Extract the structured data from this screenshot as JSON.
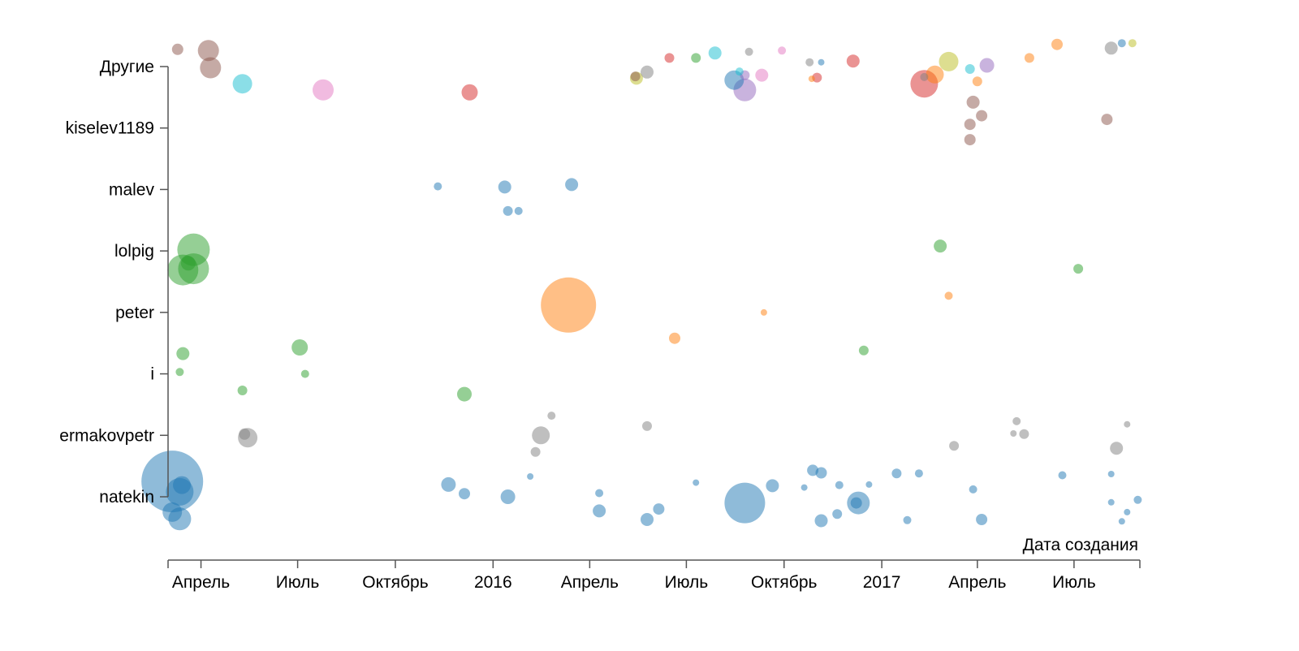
{
  "chart_data": {
    "type": "scatter",
    "xlabel": "Дата создания",
    "ylabel": "",
    "xlim": [
      "2015-03-01",
      "2017-09-01"
    ],
    "x_ticks": [
      {
        "date": "2015-04-01",
        "label": "Апрель"
      },
      {
        "date": "2015-07-01",
        "label": "Июль"
      },
      {
        "date": "2015-10-01",
        "label": "Октябрь"
      },
      {
        "date": "2016-01-01",
        "label": "2016"
      },
      {
        "date": "2016-04-01",
        "label": "Апрель"
      },
      {
        "date": "2016-07-01",
        "label": "Июль"
      },
      {
        "date": "2016-10-01",
        "label": "Октябрь"
      },
      {
        "date": "2017-01-01",
        "label": "2017"
      },
      {
        "date": "2017-04-01",
        "label": "Апрель"
      },
      {
        "date": "2017-07-01",
        "label": "Июль"
      }
    ],
    "categories": [
      "natekin",
      "ermakovpetr",
      "i",
      "peter",
      "lolpig",
      "malev",
      "kiselev1189",
      "Другие"
    ],
    "palette": {
      "blue": "#1f77b4",
      "orange": "#ff7f0e",
      "green": "#2ca02c",
      "red": "#d62728",
      "purple": "#9467bd",
      "brown": "#8c564b",
      "pink": "#e377c2",
      "gray": "#7f7f7f",
      "olive": "#bcbd22",
      "cyan": "#17becf"
    },
    "grid": false,
    "legend": "none",
    "points": [
      {
        "date": "2015-03-10",
        "category": "Другие",
        "jitter": 0.28,
        "size": 7,
        "color": "brown"
      },
      {
        "date": "2015-04-10",
        "category": "Другие",
        "jitter": -0.02,
        "size": 13,
        "color": "brown"
      },
      {
        "date": "2015-04-08",
        "category": "Другие",
        "jitter": 0.26,
        "size": 13,
        "color": "brown"
      },
      {
        "date": "2015-05-10",
        "category": "Другие",
        "jitter": -0.28,
        "size": 12,
        "color": "cyan"
      },
      {
        "date": "2015-07-25",
        "category": "Другие",
        "jitter": -0.38,
        "size": 13,
        "color": "pink"
      },
      {
        "date": "2015-12-10",
        "category": "Другие",
        "jitter": -0.42,
        "size": 10,
        "color": "red"
      },
      {
        "date": "2016-05-15",
        "category": "Другие",
        "jitter": -0.19,
        "size": 8,
        "color": "olive"
      },
      {
        "date": "2016-05-14",
        "category": "Другие",
        "jitter": -0.16,
        "size": 6,
        "color": "brown"
      },
      {
        "date": "2016-05-25",
        "category": "Другие",
        "jitter": -0.09,
        "size": 8,
        "color": "gray"
      },
      {
        "date": "2016-06-15",
        "category": "Другие",
        "jitter": 0.14,
        "size": 6,
        "color": "red"
      },
      {
        "date": "2016-07-10",
        "category": "Другие",
        "jitter": 0.14,
        "size": 6,
        "color": "green"
      },
      {
        "date": "2016-07-28",
        "category": "Другие",
        "jitter": 0.22,
        "size": 8,
        "color": "cyan"
      },
      {
        "date": "2016-08-15",
        "category": "Другие",
        "jitter": -0.22,
        "size": 12,
        "color": "blue"
      },
      {
        "date": "2016-08-20",
        "category": "Другие",
        "jitter": -0.08,
        "size": 5,
        "color": "cyan"
      },
      {
        "date": "2016-08-25",
        "category": "Другие",
        "jitter": -0.38,
        "size": 14,
        "color": "purple"
      },
      {
        "date": "2016-08-25",
        "category": "Другие",
        "jitter": -0.14,
        "size": 6,
        "color": "purple"
      },
      {
        "date": "2016-08-29",
        "category": "Другие",
        "jitter": 0.24,
        "size": 5,
        "color": "gray"
      },
      {
        "date": "2016-09-10",
        "category": "Другие",
        "jitter": -0.14,
        "size": 8,
        "color": "pink"
      },
      {
        "date": "2016-09-29",
        "category": "Другие",
        "jitter": 0.26,
        "size": 5,
        "color": "pink"
      },
      {
        "date": "2016-10-25",
        "category": "Другие",
        "jitter": 0.07,
        "size": 5,
        "color": "gray"
      },
      {
        "date": "2016-10-27",
        "category": "Другие",
        "jitter": -0.2,
        "size": 4,
        "color": "orange"
      },
      {
        "date": "2016-11-01",
        "category": "Другие",
        "jitter": -0.18,
        "size": 6,
        "color": "red"
      },
      {
        "date": "2016-11-05",
        "category": "Другие",
        "jitter": 0.07,
        "size": 4,
        "color": "blue"
      },
      {
        "date": "2016-12-05",
        "category": "Другие",
        "jitter": 0.09,
        "size": 8,
        "color": "red"
      },
      {
        "date": "2017-02-10",
        "category": "Другие",
        "jitter": -0.28,
        "size": 17,
        "color": "red"
      },
      {
        "date": "2017-02-10",
        "category": "Другие",
        "jitter": -0.17,
        "size": 5,
        "color": "gray"
      },
      {
        "date": "2017-02-20",
        "category": "Другие",
        "jitter": -0.13,
        "size": 11,
        "color": "orange"
      },
      {
        "date": "2017-03-05",
        "category": "Другие",
        "jitter": 0.08,
        "size": 12,
        "color": "olive"
      },
      {
        "date": "2017-03-25",
        "category": "Другие",
        "jitter": -0.04,
        "size": 6,
        "color": "cyan"
      },
      {
        "date": "2017-04-01",
        "category": "Другие",
        "jitter": -0.24,
        "size": 6,
        "color": "orange"
      },
      {
        "date": "2017-04-10",
        "category": "Другие",
        "jitter": 0.02,
        "size": 9,
        "color": "purple"
      },
      {
        "date": "2017-05-20",
        "category": "Другие",
        "jitter": 0.14,
        "size": 6,
        "color": "orange"
      },
      {
        "date": "2017-06-15",
        "category": "Другие",
        "jitter": 0.36,
        "size": 7,
        "color": "orange"
      },
      {
        "date": "2017-08-05",
        "category": "Другие",
        "jitter": 0.3,
        "size": 8,
        "color": "gray"
      },
      {
        "date": "2017-08-15",
        "category": "Другие",
        "jitter": 0.38,
        "size": 5,
        "color": "blue"
      },
      {
        "date": "2017-08-25",
        "category": "Другие",
        "jitter": 0.38,
        "size": 5,
        "color": "olive"
      },
      {
        "date": "2017-03-25",
        "category": "kiselev1189",
        "jitter": -0.19,
        "size": 7,
        "color": "brown"
      },
      {
        "date": "2017-03-25",
        "category": "kiselev1189",
        "jitter": 0.06,
        "size": 7,
        "color": "brown"
      },
      {
        "date": "2017-04-05",
        "category": "kiselev1189",
        "jitter": 0.2,
        "size": 7,
        "color": "brown"
      },
      {
        "date": "2017-03-28",
        "category": "kiselev1189",
        "jitter": 0.42,
        "size": 8,
        "color": "brown"
      },
      {
        "date": "2017-08-01",
        "category": "kiselev1189",
        "jitter": 0.14,
        "size": 7,
        "color": "brown"
      },
      {
        "date": "2015-11-10",
        "category": "malev",
        "jitter": 0.05,
        "size": 5,
        "color": "blue"
      },
      {
        "date": "2016-01-15",
        "category": "malev",
        "jitter": -0.35,
        "size": 6,
        "color": "blue"
      },
      {
        "date": "2016-01-12",
        "category": "malev",
        "jitter": 0.04,
        "size": 8,
        "color": "blue"
      },
      {
        "date": "2016-01-25",
        "category": "malev",
        "jitter": -0.35,
        "size": 5,
        "color": "blue"
      },
      {
        "date": "2016-03-15",
        "category": "malev",
        "jitter": 0.08,
        "size": 8,
        "color": "blue"
      },
      {
        "date": "2015-03-15",
        "category": "lolpig",
        "jitter": -0.31,
        "size": 19,
        "color": "green"
      },
      {
        "date": "2015-03-25",
        "category": "lolpig",
        "jitter": -0.29,
        "size": 19,
        "color": "green"
      },
      {
        "date": "2015-03-20",
        "category": "lolpig",
        "jitter": -0.2,
        "size": 9,
        "color": "green"
      },
      {
        "date": "2015-03-25",
        "category": "lolpig",
        "jitter": 0.02,
        "size": 20,
        "color": "green"
      },
      {
        "date": "2017-02-25",
        "category": "lolpig",
        "jitter": 0.08,
        "size": 8,
        "color": "green"
      },
      {
        "date": "2017-07-05",
        "category": "lolpig",
        "jitter": -0.29,
        "size": 6,
        "color": "green"
      },
      {
        "date": "2016-06-20",
        "category": "peter",
        "jitter": -0.42,
        "size": 7,
        "color": "orange"
      },
      {
        "date": "2016-03-12",
        "category": "peter",
        "jitter": 0.12,
        "size": 34,
        "color": "orange"
      },
      {
        "date": "2016-09-12",
        "category": "peter",
        "jitter": 0.0,
        "size": 4,
        "color": "orange"
      },
      {
        "date": "2017-03-05",
        "category": "peter",
        "jitter": 0.27,
        "size": 5,
        "color": "orange"
      },
      {
        "date": "2015-05-10",
        "category": "i",
        "jitter": -0.27,
        "size": 6,
        "color": "green"
      },
      {
        "date": "2015-03-12",
        "category": "i",
        "jitter": 0.03,
        "size": 5,
        "color": "green"
      },
      {
        "date": "2015-03-15",
        "category": "i",
        "jitter": 0.33,
        "size": 8,
        "color": "green"
      },
      {
        "date": "2015-07-08",
        "category": "i",
        "jitter": 0.0,
        "size": 5,
        "color": "green"
      },
      {
        "date": "2015-07-03",
        "category": "i",
        "jitter": 0.43,
        "size": 10,
        "color": "green"
      },
      {
        "date": "2015-12-05",
        "category": "i",
        "jitter": -0.33,
        "size": 9,
        "color": "green"
      },
      {
        "date": "2016-12-15",
        "category": "i",
        "jitter": 0.38,
        "size": 6,
        "color": "green"
      },
      {
        "date": "2015-05-15",
        "category": "ermakovpetr",
        "jitter": -0.04,
        "size": 12,
        "color": "gray"
      },
      {
        "date": "2015-05-12",
        "category": "ermakovpetr",
        "jitter": 0.02,
        "size": 7,
        "color": "gray"
      },
      {
        "date": "2016-02-10",
        "category": "ermakovpetr",
        "jitter": -0.27,
        "size": 6,
        "color": "gray"
      },
      {
        "date": "2016-02-15",
        "category": "ermakovpetr",
        "jitter": 0.0,
        "size": 11,
        "color": "gray"
      },
      {
        "date": "2016-02-25",
        "category": "ermakovpetr",
        "jitter": 0.32,
        "size": 5,
        "color": "gray"
      },
      {
        "date": "2016-05-25",
        "category": "ermakovpetr",
        "jitter": 0.15,
        "size": 6,
        "color": "gray"
      },
      {
        "date": "2017-03-10",
        "category": "ermakovpetr",
        "jitter": -0.17,
        "size": 6,
        "color": "gray"
      },
      {
        "date": "2017-05-05",
        "category": "ermakovpetr",
        "jitter": 0.03,
        "size": 4,
        "color": "gray"
      },
      {
        "date": "2017-05-15",
        "category": "ermakovpetr",
        "jitter": 0.02,
        "size": 6,
        "color": "gray"
      },
      {
        "date": "2017-05-08",
        "category": "ermakovpetr",
        "jitter": 0.23,
        "size": 5,
        "color": "gray"
      },
      {
        "date": "2017-08-10",
        "category": "ermakovpetr",
        "jitter": -0.21,
        "size": 8,
        "color": "gray"
      },
      {
        "date": "2017-08-20",
        "category": "ermakovpetr",
        "jitter": 0.18,
        "size": 4,
        "color": "gray"
      },
      {
        "date": "2015-03-05",
        "category": "natekin",
        "jitter": 0.25,
        "size": 38,
        "color": "blue"
      },
      {
        "date": "2015-03-05",
        "category": "natekin",
        "jitter": -0.25,
        "size": 12,
        "color": "blue"
      },
      {
        "date": "2015-03-12",
        "category": "natekin",
        "jitter": 0.08,
        "size": 17,
        "color": "blue"
      },
      {
        "date": "2015-03-12",
        "category": "natekin",
        "jitter": -0.36,
        "size": 14,
        "color": "blue"
      },
      {
        "date": "2015-03-14",
        "category": "natekin",
        "jitter": 0.19,
        "size": 11,
        "color": "blue"
      },
      {
        "date": "2015-11-20",
        "category": "natekin",
        "jitter": 0.2,
        "size": 9,
        "color": "blue"
      },
      {
        "date": "2015-12-05",
        "category": "natekin",
        "jitter": 0.05,
        "size": 7,
        "color": "blue"
      },
      {
        "date": "2016-01-15",
        "category": "natekin",
        "jitter": 0.0,
        "size": 9,
        "color": "blue"
      },
      {
        "date": "2016-02-05",
        "category": "natekin",
        "jitter": 0.33,
        "size": 4,
        "color": "blue"
      },
      {
        "date": "2016-04-10",
        "category": "natekin",
        "jitter": -0.23,
        "size": 8,
        "color": "blue"
      },
      {
        "date": "2016-04-10",
        "category": "natekin",
        "jitter": 0.06,
        "size": 5,
        "color": "blue"
      },
      {
        "date": "2016-05-25",
        "category": "natekin",
        "jitter": -0.37,
        "size": 8,
        "color": "blue"
      },
      {
        "date": "2016-06-05",
        "category": "natekin",
        "jitter": -0.2,
        "size": 7,
        "color": "blue"
      },
      {
        "date": "2016-07-10",
        "category": "natekin",
        "jitter": 0.23,
        "size": 4,
        "color": "blue"
      },
      {
        "date": "2016-08-25",
        "category": "natekin",
        "jitter": -0.1,
        "size": 25,
        "color": "blue"
      },
      {
        "date": "2016-09-20",
        "category": "natekin",
        "jitter": 0.18,
        "size": 8,
        "color": "blue"
      },
      {
        "date": "2016-10-20",
        "category": "natekin",
        "jitter": 0.15,
        "size": 4,
        "color": "blue"
      },
      {
        "date": "2016-10-28",
        "category": "natekin",
        "jitter": 0.43,
        "size": 7,
        "color": "blue"
      },
      {
        "date": "2016-11-05",
        "category": "natekin",
        "jitter": -0.39,
        "size": 8,
        "color": "blue"
      },
      {
        "date": "2016-11-05",
        "category": "natekin",
        "jitter": 0.39,
        "size": 7,
        "color": "blue"
      },
      {
        "date": "2016-11-20",
        "category": "natekin",
        "jitter": -0.28,
        "size": 6,
        "color": "blue"
      },
      {
        "date": "2016-11-22",
        "category": "natekin",
        "jitter": 0.19,
        "size": 5,
        "color": "blue"
      },
      {
        "date": "2016-12-10",
        "category": "natekin",
        "jitter": -0.1,
        "size": 14,
        "color": "blue"
      },
      {
        "date": "2016-12-08",
        "category": "natekin",
        "jitter": -0.1,
        "size": 7,
        "color": "blue"
      },
      {
        "date": "2016-12-20",
        "category": "natekin",
        "jitter": 0.2,
        "size": 4,
        "color": "blue"
      },
      {
        "date": "2017-01-25",
        "category": "natekin",
        "jitter": -0.38,
        "size": 5,
        "color": "blue"
      },
      {
        "date": "2017-01-15",
        "category": "natekin",
        "jitter": 0.38,
        "size": 6,
        "color": "blue"
      },
      {
        "date": "2017-02-05",
        "category": "natekin",
        "jitter": 0.38,
        "size": 5,
        "color": "blue"
      },
      {
        "date": "2017-03-28",
        "category": "natekin",
        "jitter": 0.12,
        "size": 5,
        "color": "blue"
      },
      {
        "date": "2017-04-05",
        "category": "natekin",
        "jitter": -0.37,
        "size": 7,
        "color": "blue"
      },
      {
        "date": "2017-06-20",
        "category": "natekin",
        "jitter": 0.35,
        "size": 5,
        "color": "blue"
      },
      {
        "date": "2017-08-05",
        "category": "natekin",
        "jitter": -0.09,
        "size": 4,
        "color": "blue"
      },
      {
        "date": "2017-08-15",
        "category": "natekin",
        "jitter": -0.4,
        "size": 4,
        "color": "blue"
      },
      {
        "date": "2017-08-20",
        "category": "natekin",
        "jitter": -0.25,
        "size": 4,
        "color": "blue"
      },
      {
        "date": "2017-08-30",
        "category": "natekin",
        "jitter": -0.05,
        "size": 5,
        "color": "blue"
      },
      {
        "date": "2017-08-05",
        "category": "natekin",
        "jitter": 0.37,
        "size": 4,
        "color": "blue"
      }
    ]
  }
}
